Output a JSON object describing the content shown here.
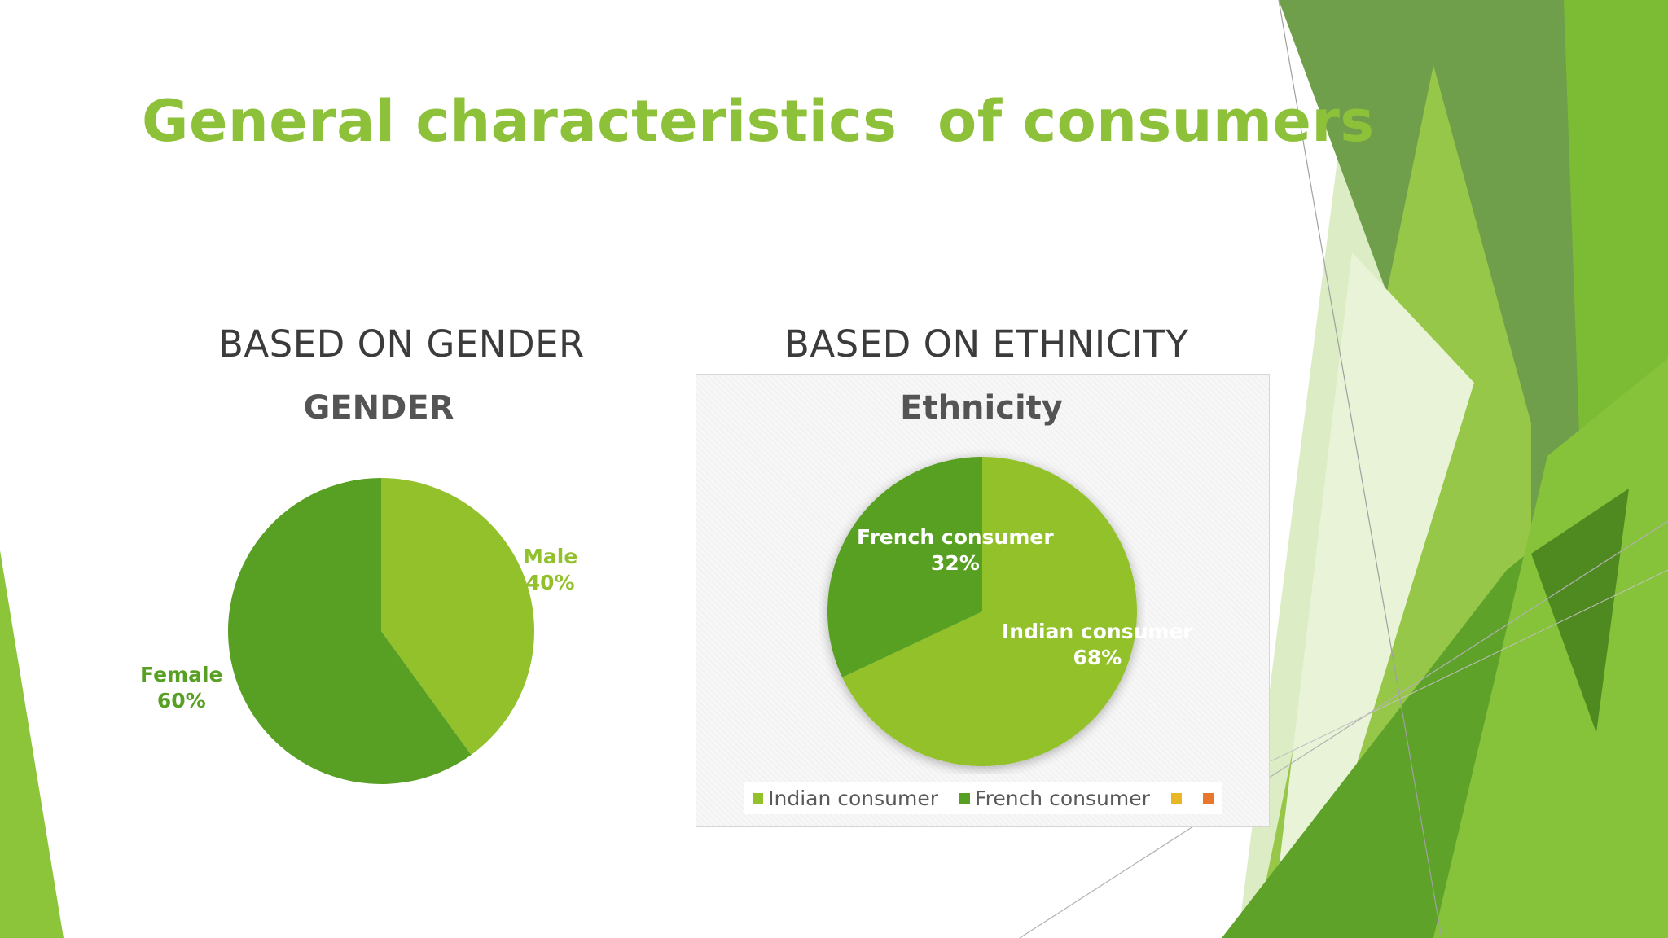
{
  "slide": {
    "title": "General characteristics  of consumers",
    "title_color": "#8dc13a"
  },
  "sections": {
    "gender_heading": "BASED ON GENDER",
    "ethnicity_heading": "BASED ON ETHNICITY"
  },
  "chart_data": [
    {
      "type": "pie",
      "title": "GENDER",
      "slices": [
        {
          "name": "Male",
          "value": 40,
          "label": "40%",
          "color": "#92c12c"
        },
        {
          "name": "Female",
          "value": 60,
          "label": "60%",
          "color": "#58a024"
        }
      ],
      "legend": null
    },
    {
      "type": "pie",
      "title": "Ethnicity",
      "slices": [
        {
          "name": "Indian consumer",
          "value": 68,
          "label": "68%",
          "color": "#92c12c"
        },
        {
          "name": "French consumer",
          "value": 32,
          "label": "32%",
          "color": "#58a024"
        }
      ],
      "legend": {
        "placement": "bottom",
        "entries": [
          {
            "name": "Indian consumer",
            "color": "#92c12c"
          },
          {
            "name": "French consumer",
            "color": "#58a024"
          },
          {
            "name": "",
            "color": "#e9b626"
          },
          {
            "name": "",
            "color": "#e8762c"
          }
        ]
      }
    }
  ]
}
